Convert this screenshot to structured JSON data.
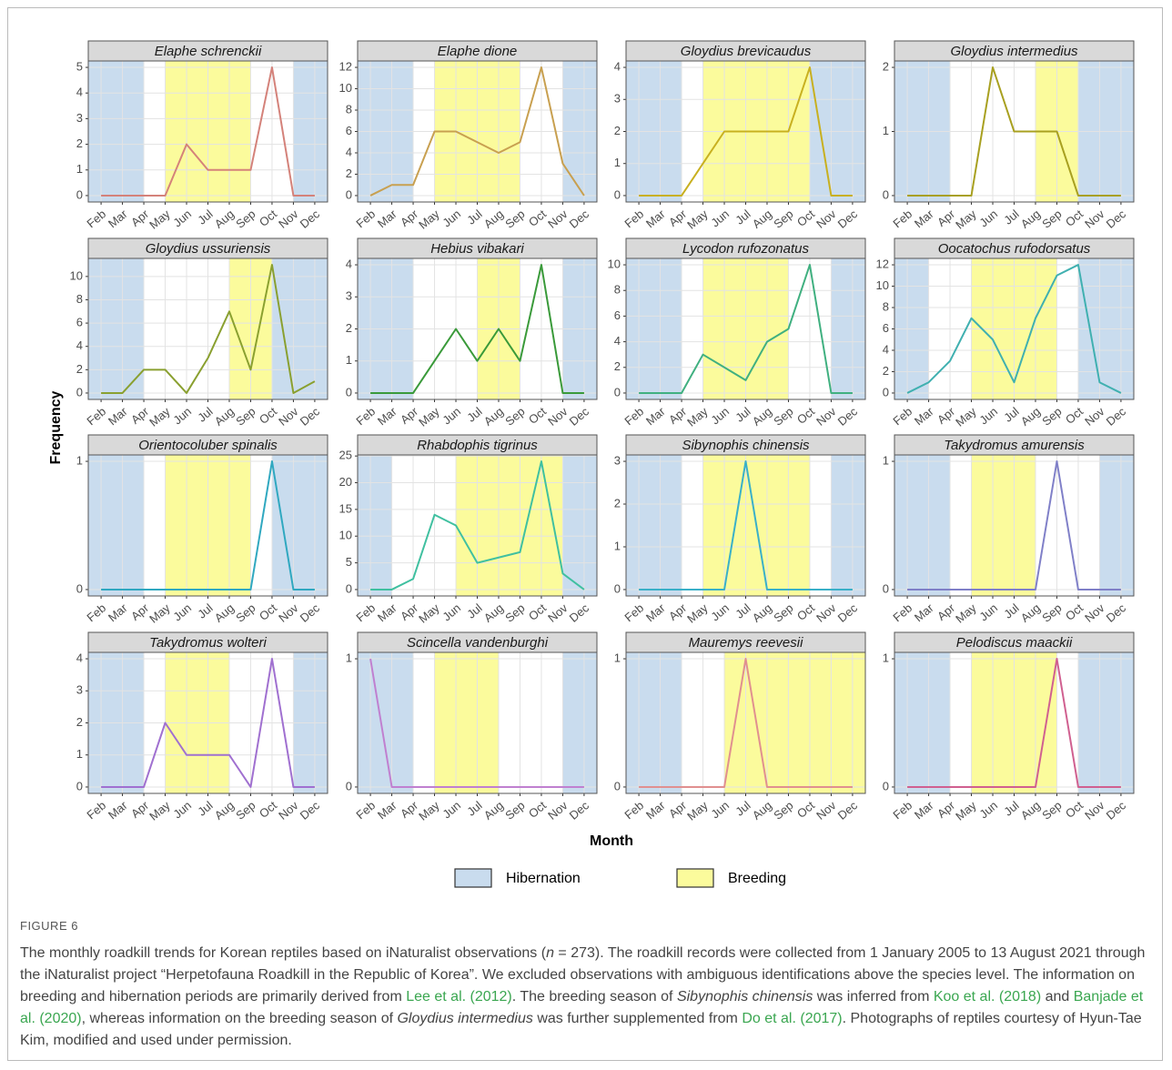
{
  "chart_data": {
    "type": "line",
    "x_label": "Month",
    "y_label": "Frequency",
    "categories": [
      "Feb",
      "Mar",
      "Apr",
      "May",
      "Jun",
      "Jul",
      "Aug",
      "Sep",
      "Oct",
      "Nov",
      "Dec"
    ],
    "xlim": [
      -0.6,
      10.6
    ],
    "grid": true,
    "legend": [
      {
        "name": "Hibernation",
        "color": "#c9dcee"
      },
      {
        "name": "Breeding",
        "color": "#fbfb9c"
      }
    ],
    "panels": [
      {
        "title": "Elaphe schrenckii",
        "color": "#d4827a",
        "values": [
          0,
          0,
          0,
          0,
          2,
          1,
          1,
          1,
          5,
          0,
          0
        ],
        "ylim": [
          -0.25,
          5.25
        ],
        "yticks": [
          0,
          1,
          2,
          3,
          4,
          5
        ],
        "hibernation": [
          [
            -0.6,
            2
          ],
          [
            9,
            10.6
          ]
        ],
        "breeding": [
          [
            3,
            7
          ]
        ]
      },
      {
        "title": "Elaphe dione",
        "color": "#c8a050",
        "values": [
          0,
          1,
          1,
          6,
          6,
          5,
          4,
          5,
          12,
          3,
          0
        ],
        "ylim": [
          -0.6,
          12.6
        ],
        "yticks": [
          0,
          2,
          4,
          6,
          8,
          10,
          12
        ],
        "hibernation": [
          [
            -0.6,
            2
          ],
          [
            9,
            10.6
          ]
        ],
        "breeding": [
          [
            3,
            7
          ]
        ]
      },
      {
        "title": "Gloydius brevicaudus",
        "color": "#c8b020",
        "values": [
          0,
          0,
          0,
          1,
          2,
          2,
          2,
          2,
          4,
          0,
          0
        ],
        "ylim": [
          -0.2,
          4.2
        ],
        "yticks": [
          0,
          1,
          2,
          3,
          4
        ],
        "hibernation": [
          [
            -0.6,
            2
          ],
          [
            8,
            10.6
          ]
        ],
        "breeding": [
          [
            3,
            8
          ]
        ]
      },
      {
        "title": "Gloydius intermedius",
        "color": "#a8a020",
        "values": [
          0,
          0,
          0,
          0,
          2,
          1,
          1,
          1,
          0,
          0,
          0
        ],
        "ylim": [
          -0.1,
          2.1
        ],
        "yticks": [
          0,
          1,
          2
        ],
        "hibernation": [
          [
            -0.6,
            2
          ],
          [
            8,
            10.6
          ]
        ],
        "breeding": [
          [
            6,
            8
          ]
        ]
      },
      {
        "title": "Gloydius ussuriensis",
        "color": "#8aa030",
        "values": [
          0,
          0,
          2,
          2,
          0,
          3,
          7,
          2,
          11,
          0,
          1
        ],
        "ylim": [
          -0.55,
          11.55
        ],
        "yticks": [
          0,
          2,
          4,
          6,
          8,
          10
        ],
        "hibernation": [
          [
            -0.6,
            2
          ],
          [
            8,
            10.6
          ]
        ],
        "breeding": [
          [
            6,
            8
          ]
        ]
      },
      {
        "title": "Hebius vibakari",
        "color": "#3a9a3a",
        "values": [
          0,
          0,
          0,
          1,
          2,
          1,
          2,
          1,
          4,
          0,
          0
        ],
        "ylim": [
          -0.2,
          4.2
        ],
        "yticks": [
          0,
          1,
          2,
          3,
          4
        ],
        "hibernation": [
          [
            -0.6,
            2
          ],
          [
            9,
            10.6
          ]
        ],
        "breeding": [
          [
            5,
            7
          ]
        ]
      },
      {
        "title": "Lycodon rufozonatus",
        "color": "#40b080",
        "values": [
          0,
          0,
          0,
          3,
          2,
          1,
          4,
          5,
          10,
          0,
          0
        ],
        "ylim": [
          -0.5,
          10.5
        ],
        "yticks": [
          0,
          2,
          4,
          6,
          8,
          10
        ],
        "hibernation": [
          [
            -0.6,
            2
          ],
          [
            9,
            10.6
          ]
        ],
        "breeding": [
          [
            3,
            7
          ]
        ]
      },
      {
        "title": "Oocatochus rufodorsatus",
        "color": "#40b0b0",
        "values": [
          0,
          1,
          3,
          7,
          5,
          1,
          7,
          11,
          12,
          1,
          0
        ],
        "ylim": [
          -0.6,
          12.6
        ],
        "yticks": [
          0,
          2,
          4,
          6,
          8,
          10,
          12
        ],
        "hibernation": [
          [
            -0.6,
            1
          ],
          [
            8,
            10.6
          ]
        ],
        "breeding": [
          [
            3,
            7
          ]
        ]
      },
      {
        "title": "Orientocoluber spinalis",
        "color": "#30a8c0",
        "values": [
          0,
          0,
          0,
          0,
          0,
          0,
          0,
          0,
          1,
          0,
          0
        ],
        "ylim": [
          -0.05,
          1.05
        ],
        "yticks": [
          0,
          1
        ],
        "hibernation": [
          [
            -0.6,
            2
          ],
          [
            8,
            10.6
          ]
        ],
        "breeding": [
          [
            3,
            7
          ]
        ]
      },
      {
        "title": "Rhabdophis tigrinus",
        "color": "#40c0a0",
        "values": [
          0,
          0,
          2,
          14,
          12,
          5,
          6,
          7,
          24,
          3,
          0
        ],
        "ylim": [
          -1.2,
          25.2
        ],
        "yticks": [
          0,
          5,
          10,
          15,
          20,
          25
        ],
        "hibernation": [
          [
            -0.6,
            1
          ],
          [
            9,
            10.6
          ]
        ],
        "breeding": [
          [
            4,
            9
          ]
        ]
      },
      {
        "title": "Sibynophis chinensis",
        "color": "#3ab0c8",
        "values": [
          0,
          0,
          0,
          0,
          0,
          3,
          0,
          0,
          0,
          0,
          0
        ],
        "ylim": [
          -0.15,
          3.15
        ],
        "yticks": [
          0,
          1,
          2,
          3
        ],
        "hibernation": [
          [
            -0.6,
            2
          ],
          [
            9,
            10.6
          ]
        ],
        "breeding": [
          [
            3,
            8
          ]
        ]
      },
      {
        "title": "Takydromus amurensis",
        "color": "#8080c8",
        "values": [
          0,
          0,
          0,
          0,
          0,
          0,
          0,
          1,
          0,
          0,
          0
        ],
        "ylim": [
          -0.05,
          1.05
        ],
        "yticks": [
          0,
          1
        ],
        "hibernation": [
          [
            -0.6,
            2
          ],
          [
            9,
            10.6
          ]
        ],
        "breeding": [
          [
            3,
            6
          ]
        ]
      },
      {
        "title": "Takydromus wolteri",
        "color": "#a070d0",
        "values": [
          0,
          0,
          0,
          2,
          1,
          1,
          1,
          0,
          4,
          0,
          0
        ],
        "ylim": [
          -0.2,
          4.2
        ],
        "yticks": [
          0,
          1,
          2,
          3,
          4
        ],
        "hibernation": [
          [
            -0.6,
            2
          ],
          [
            9,
            10.6
          ]
        ],
        "breeding": [
          [
            3,
            6
          ]
        ]
      },
      {
        "title": "Scincella vandenburghi",
        "color": "#c080d0",
        "values": [
          1,
          0,
          0,
          0,
          0,
          0,
          0,
          0,
          0,
          0,
          0
        ],
        "ylim": [
          -0.05,
          1.05
        ],
        "yticks": [
          0,
          1
        ],
        "hibernation": [
          [
            -0.6,
            2
          ],
          [
            9,
            10.6
          ]
        ],
        "breeding": [
          [
            3,
            6
          ]
        ]
      },
      {
        "title": "Mauremys reevesii",
        "color": "#e09090",
        "values": [
          0,
          0,
          0,
          0,
          0,
          1,
          0,
          0,
          0,
          0,
          0
        ],
        "ylim": [
          -0.05,
          1.05
        ],
        "yticks": [
          0,
          1
        ],
        "hibernation": [
          [
            -0.6,
            2
          ]
        ],
        "breeding": [
          [
            4,
            10.6
          ]
        ]
      },
      {
        "title": "Pelodiscus maackii",
        "color": "#d06090",
        "values": [
          0,
          0,
          0,
          0,
          0,
          0,
          0,
          1,
          0,
          0,
          0
        ],
        "ylim": [
          -0.05,
          1.05
        ],
        "yticks": [
          0,
          1
        ],
        "hibernation": [
          [
            -0.6,
            2
          ],
          [
            8,
            10.6
          ]
        ],
        "breeding": [
          [
            3,
            7
          ]
        ]
      }
    ]
  },
  "caption": {
    "label": "FIGURE 6",
    "segments": [
      {
        "text": "The monthly roadkill trends for Korean reptiles based on iNaturalist observations (",
        "style": "plain"
      },
      {
        "text": "n",
        "style": "italic"
      },
      {
        "text": " = 273). The roadkill records were collected from 1 January 2005 to 13 August 2021 through the iNaturalist project “Herpetofauna Roadkill in the Republic of Korea”. We excluded observations with ambiguous identifications above the species level. The information on breeding and hibernation periods are primarily derived from ",
        "style": "plain"
      },
      {
        "text": "Lee et al. (2012)",
        "style": "link"
      },
      {
        "text": ". The breeding season of ",
        "style": "plain"
      },
      {
        "text": "Sibynophis chinensis",
        "style": "italic"
      },
      {
        "text": " was inferred from ",
        "style": "plain"
      },
      {
        "text": "Koo et al. (2018)",
        "style": "link"
      },
      {
        "text": " and ",
        "style": "plain"
      },
      {
        "text": "Banjade et al. (2020)",
        "style": "link"
      },
      {
        "text": ", whereas information on the breeding season of ",
        "style": "plain"
      },
      {
        "text": "Gloydius intermedius",
        "style": "italic"
      },
      {
        "text": " was further supplemented from ",
        "style": "plain"
      },
      {
        "text": "Do et al. (2017)",
        "style": "link"
      },
      {
        "text": ". Photographs of reptiles courtesy of Hyun-Tae Kim, modified and used under permission.",
        "style": "plain"
      }
    ]
  }
}
